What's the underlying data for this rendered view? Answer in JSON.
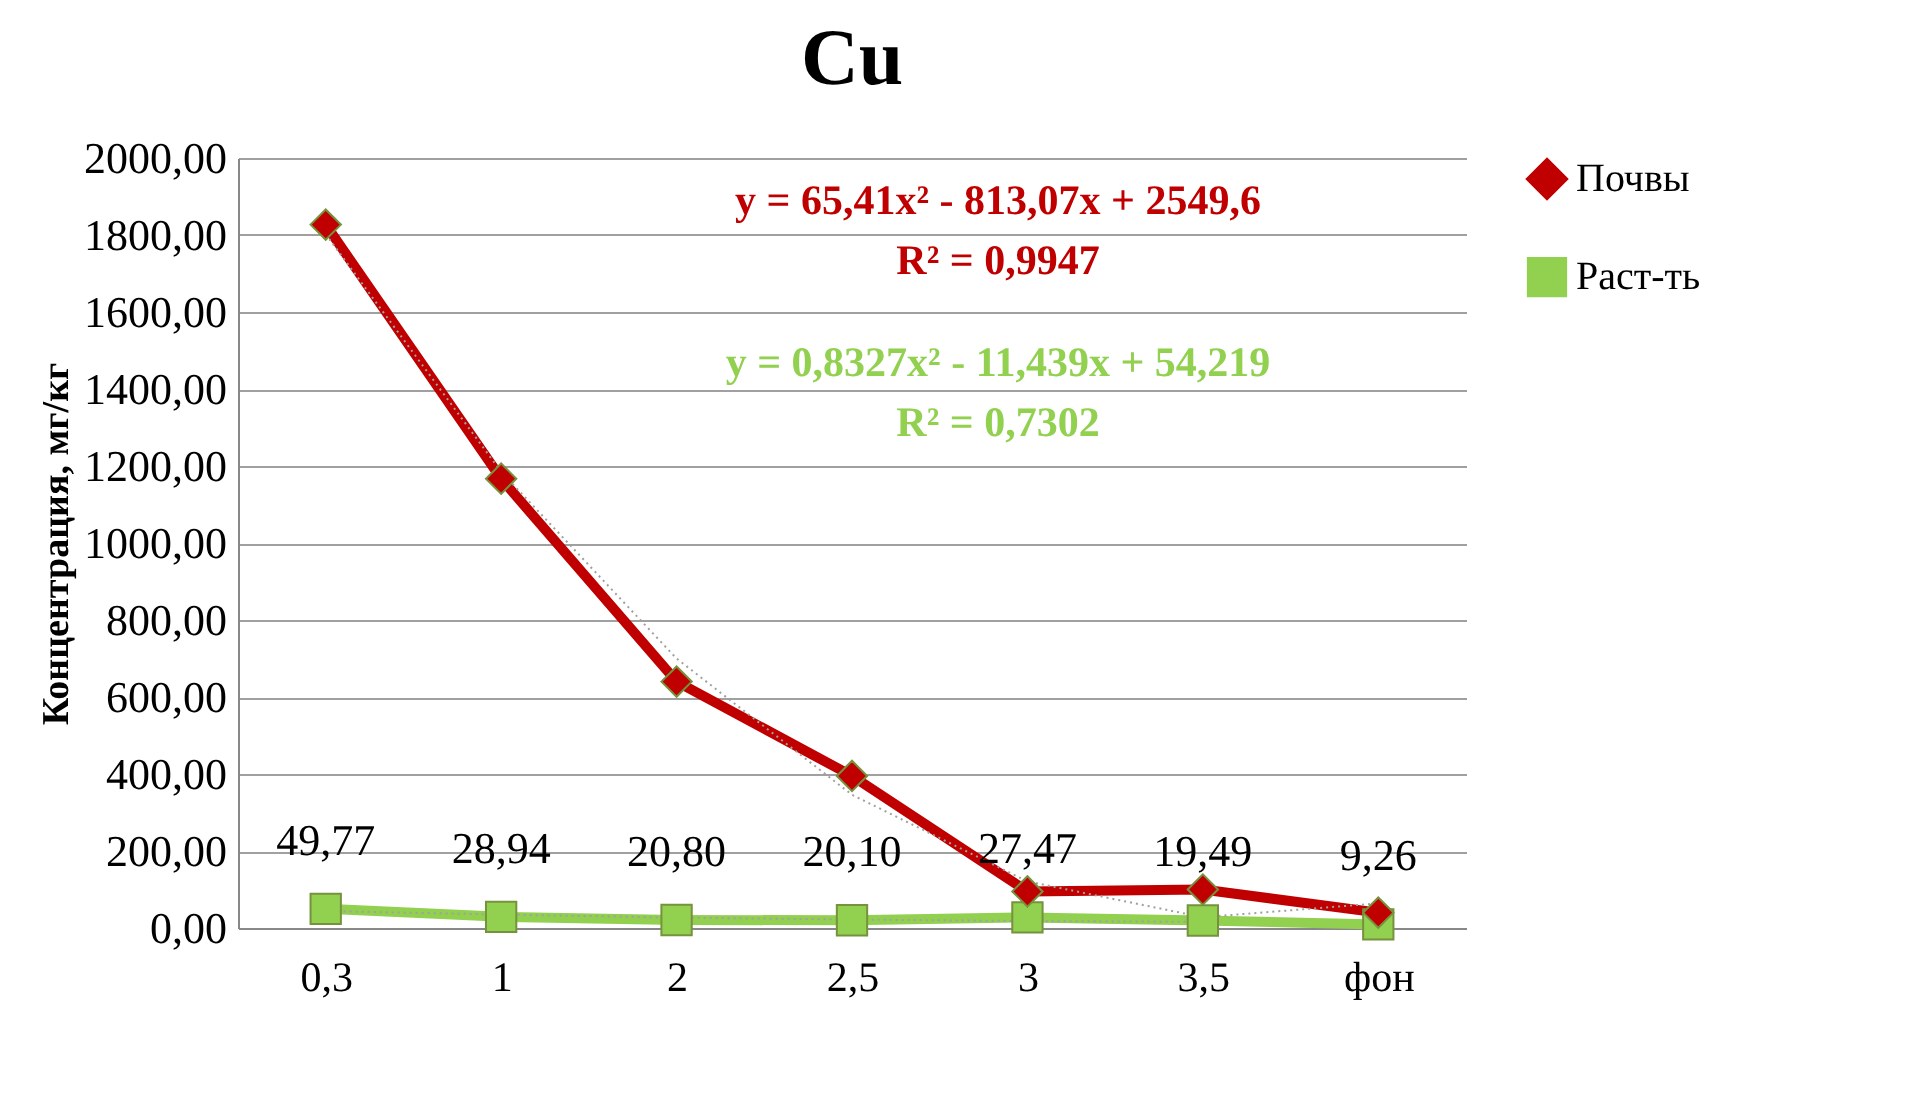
{
  "chart_data": {
    "type": "line",
    "title": "Cu",
    "ylabel": "Концентрация, мг/кг",
    "categories": [
      "0,3",
      "1",
      "2",
      "2,5",
      "3",
      "3,5",
      "фон"
    ],
    "ylim": [
      0,
      2000
    ],
    "yticks": [
      {
        "value": 0,
        "label": "0,00"
      },
      {
        "value": 200,
        "label": "200,00"
      },
      {
        "value": 400,
        "label": "400,00"
      },
      {
        "value": 600,
        "label": "600,00"
      },
      {
        "value": 800,
        "label": "800,00"
      },
      {
        "value": 1000,
        "label": "1000,00"
      },
      {
        "value": 1200,
        "label": "1200,00"
      },
      {
        "value": 1400,
        "label": "1400,00"
      },
      {
        "value": 1600,
        "label": "1600,00"
      },
      {
        "value": 1800,
        "label": "1800,00"
      },
      {
        "value": 2000,
        "label": "2000,00"
      }
    ],
    "grid": "y",
    "legend": "right",
    "series": [
      {
        "name": "Почвы",
        "color": "#c00000",
        "marker": "diamond",
        "values": [
          1827,
          1167,
          640,
          395,
          95,
          100,
          40
        ]
      },
      {
        "name": "Раст-ть",
        "color": "#92d050",
        "marker": "square",
        "values": [
          49.77,
          28.94,
          20.8,
          20.1,
          27.47,
          19.49,
          9.26
        ],
        "value_labels": [
          "49,77",
          "28,94",
          "20,80",
          "20,10",
          "27,47",
          "19,49",
          "9,26"
        ]
      },
      {
        "type": "line",
        "color": "#a0a0a0",
        "marker": "none",
        "line_style": "dotted",
        "values": [
          1802,
          1185,
          700,
          346,
          121,
          28,
          64
        ]
      },
      {
        "type": "line",
        "color": "#a0a0a0",
        "marker": "none",
        "line_style": "dotted",
        "values": [
          44,
          35,
          27,
          22,
          18,
          16,
          null
        ]
      }
    ],
    "annotations": [
      "y = 65,41x² - 813,07x + 2549,6",
      "R² = 0,9947",
      "y = 0,8327x² - 11,439x + 54,219",
      "R² = 0,7302"
    ]
  }
}
